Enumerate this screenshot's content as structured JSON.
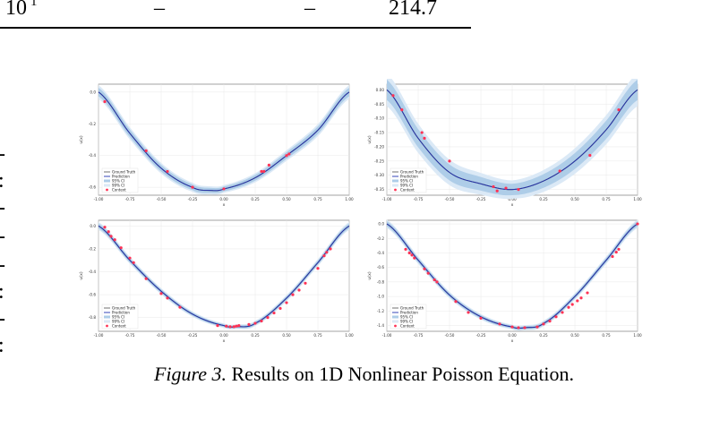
{
  "table_tail": {
    "cells": [
      "10",
      "–",
      "–",
      "214.7"
    ],
    "superscript": "1"
  },
  "margin_marks": [
    "-",
    ":",
    "-",
    "-",
    "-",
    ":",
    "-",
    ":"
  ],
  "caption": {
    "label": "Figure 3.",
    "text": "Results on 1D Nonlinear Poisson Equation."
  },
  "legend": [
    "Ground Truth",
    "Prediction",
    "95% CI",
    "99% CI",
    "Context"
  ],
  "colors": {
    "ground_truth": "#606060",
    "prediction": "#1f2fb0",
    "ci95": "#aecde8",
    "ci99": "#dbe9f6",
    "context": "#ff3355"
  },
  "chart_data": [
    {
      "type": "line",
      "xlabel": "x",
      "ylabel": "u(x)",
      "xlim": [
        -1.0,
        1.0
      ],
      "ylim": [
        -0.65,
        0.05
      ],
      "xticks": [
        "-1.00",
        "-0.75",
        "-0.50",
        "-0.25",
        "0.00",
        "0.25",
        "0.50",
        "0.75",
        "1.00"
      ],
      "yticks": [
        "0.0",
        "-0.2",
        "-0.4",
        "-0.6"
      ],
      "ytick_values": [
        0.0,
        -0.2,
        -0.4,
        -0.6
      ],
      "curve": {
        "x": [
          -1.0,
          -0.75,
          -0.5,
          -0.25,
          -0.1,
          0.0,
          0.25,
          0.5,
          0.75,
          1.0
        ],
        "y": [
          0.0,
          -0.26,
          -0.48,
          -0.6,
          -0.62,
          -0.61,
          -0.54,
          -0.4,
          -0.24,
          0.0
        ]
      },
      "ci_width": 0.015,
      "context": {
        "x": [
          -0.95,
          -0.62,
          -0.45,
          -0.25,
          0.0,
          0.3,
          0.32,
          0.36,
          0.5,
          0.52
        ],
        "y": [
          -0.06,
          -0.37,
          -0.5,
          -0.6,
          -0.61,
          -0.5,
          -0.5,
          -0.46,
          -0.4,
          -0.39
        ]
      },
      "legend_position": "lower-left"
    },
    {
      "type": "line",
      "xlabel": "x",
      "ylabel": "u(x)",
      "xlim": [
        -1.0,
        1.0
      ],
      "ylim": [
        -0.37,
        0.02
      ],
      "xticks": [
        "-1.00",
        "-0.75",
        "-0.50",
        "-0.25",
        "0.00",
        "0.25",
        "0.50",
        "0.75",
        "1.00"
      ],
      "yticks": [
        "0.00",
        "-0.05",
        "-0.10",
        "-0.15",
        "-0.20",
        "-0.25",
        "-0.30",
        "-0.35"
      ],
      "ytick_values": [
        0.0,
        -0.05,
        -0.1,
        -0.15,
        -0.2,
        -0.25,
        -0.3,
        -0.35
      ],
      "curve": {
        "x": [
          -1.0,
          -0.75,
          -0.5,
          -0.25,
          0.0,
          0.25,
          0.5,
          0.75,
          1.0
        ],
        "y": [
          0.0,
          -0.17,
          -0.29,
          -0.33,
          -0.35,
          -0.32,
          -0.25,
          -0.14,
          0.0
        ]
      },
      "ci_width": 0.02,
      "context": {
        "x": [
          -0.95,
          -0.88,
          -0.72,
          -0.7,
          -0.5,
          -0.15,
          -0.12,
          -0.05,
          0.05,
          0.38,
          0.62,
          0.85
        ],
        "y": [
          -0.02,
          -0.07,
          -0.15,
          -0.17,
          -0.25,
          -0.34,
          -0.355,
          -0.345,
          -0.35,
          -0.285,
          -0.23,
          -0.07
        ]
      },
      "legend_position": "lower-left"
    },
    {
      "type": "line",
      "xlabel": "x",
      "ylabel": "u(x)",
      "xlim": [
        -1.0,
        1.0
      ],
      "ylim": [
        -0.92,
        0.05
      ],
      "xticks": [
        "-1.00",
        "-0.75",
        "-0.50",
        "-0.25",
        "0.00",
        "0.25",
        "0.50",
        "0.75",
        "1.00"
      ],
      "yticks": [
        "0.0",
        "-0.2",
        "-0.4",
        "-0.6",
        "-0.8"
      ],
      "ytick_values": [
        0.0,
        -0.2,
        -0.4,
        -0.6,
        -0.8
      ],
      "curve": {
        "x": [
          -1.0,
          -0.75,
          -0.5,
          -0.25,
          0.0,
          0.1,
          0.25,
          0.5,
          0.75,
          1.0
        ],
        "y": [
          0.0,
          -0.3,
          -0.57,
          -0.77,
          -0.87,
          -0.88,
          -0.85,
          -0.63,
          -0.32,
          0.0
        ]
      },
      "ci_width": 0.012,
      "context": {
        "x": [
          -0.95,
          -0.92,
          -0.9,
          -0.87,
          -0.82,
          -0.75,
          -0.72,
          -0.62,
          -0.5,
          -0.45,
          -0.35,
          -0.05,
          0.02,
          0.05,
          0.08,
          0.1,
          0.12,
          0.2,
          0.25,
          0.3,
          0.35,
          0.4,
          0.45,
          0.5,
          0.55,
          0.6,
          0.65,
          0.75,
          0.8,
          0.82,
          0.85
        ],
        "y": [
          -0.01,
          -0.05,
          -0.09,
          -0.12,
          -0.19,
          -0.28,
          -0.32,
          -0.46,
          -0.59,
          -0.63,
          -0.71,
          -0.87,
          -0.875,
          -0.88,
          -0.88,
          -0.875,
          -0.87,
          -0.86,
          -0.85,
          -0.83,
          -0.8,
          -0.76,
          -0.72,
          -0.67,
          -0.6,
          -0.56,
          -0.5,
          -0.37,
          -0.26,
          -0.23,
          -0.2
        ],
        "y_note": ""
      },
      "legend_position": "lower-left"
    },
    {
      "type": "line",
      "xlabel": "x",
      "ylabel": "u(x)",
      "xlim": [
        -1.0,
        1.0
      ],
      "ylim": [
        -1.48,
        0.05
      ],
      "xticks": [
        "-1.00",
        "-0.75",
        "-0.50",
        "-0.25",
        "0.00",
        "0.25",
        "0.50",
        "0.75",
        "1.00"
      ],
      "yticks": [
        "0.0",
        "-0.2",
        "-0.4",
        "-0.6",
        "-0.8",
        "-1.0",
        "-1.2",
        "-1.4"
      ],
      "ytick_values": [
        0.0,
        -0.2,
        -0.4,
        -0.6,
        -0.8,
        -1.0,
        -1.2,
        -1.4
      ],
      "curve": {
        "x": [
          -1.0,
          -0.75,
          -0.5,
          -0.25,
          0.0,
          0.1,
          0.25,
          0.5,
          0.75,
          1.0
        ],
        "y": [
          0.0,
          -0.5,
          -0.98,
          -1.28,
          -1.42,
          -1.43,
          -1.37,
          -1.0,
          -0.5,
          0.0
        ]
      },
      "ci_width": 0.02,
      "context": {
        "x": [
          -0.85,
          -0.82,
          -0.8,
          -0.78,
          -0.7,
          -0.67,
          -0.62,
          -0.6,
          -0.45,
          -0.35,
          -0.25,
          -0.1,
          0.0,
          0.05,
          0.1,
          0.2,
          0.25,
          0.3,
          0.35,
          0.4,
          0.45,
          0.48,
          0.52,
          0.55,
          0.6,
          0.8,
          0.83,
          0.85,
          1.0
        ],
        "y": [
          -0.35,
          -0.4,
          -0.43,
          -0.47,
          -0.62,
          -0.68,
          -0.77,
          -0.8,
          -1.07,
          -1.22,
          -1.3,
          -1.38,
          -1.42,
          -1.43,
          -1.43,
          -1.42,
          -1.38,
          -1.34,
          -1.28,
          -1.22,
          -1.15,
          -1.11,
          -1.06,
          -1.02,
          -0.95,
          -0.45,
          -0.39,
          -0.35,
          0.0
        ]
      },
      "legend_position": "lower-left"
    }
  ]
}
